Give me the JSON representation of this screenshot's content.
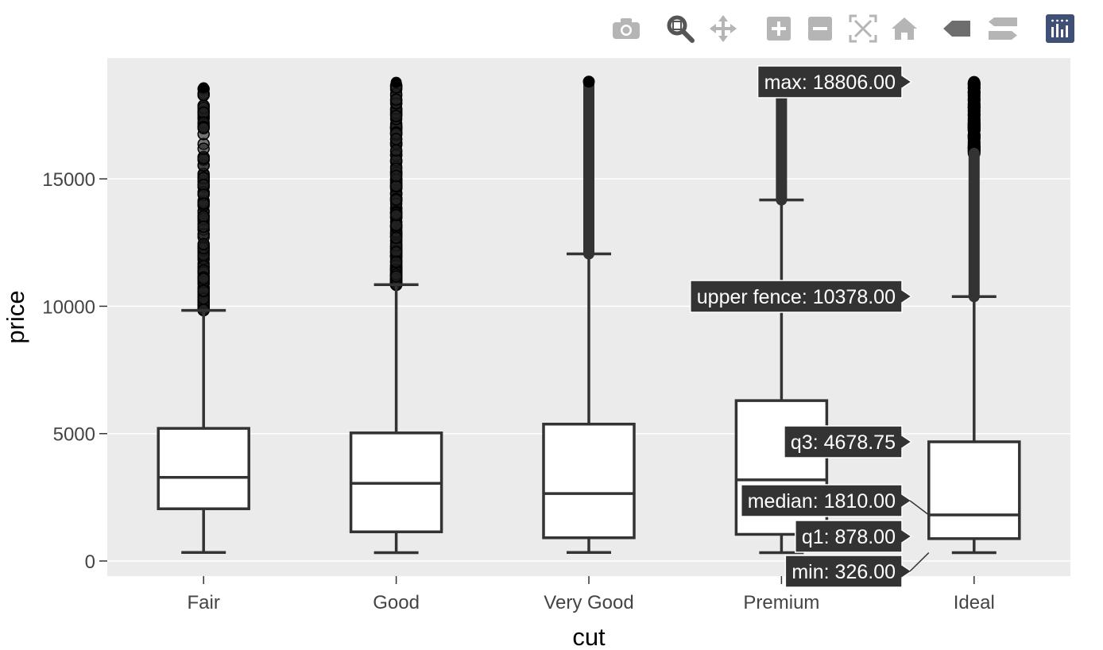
{
  "modebar": {
    "buttons": [
      {
        "icon": "camera-icon",
        "label": "Download plot as a png"
      },
      {
        "icon": "zoom-icon",
        "label": "Zoom"
      },
      {
        "icon": "pan-icon",
        "label": "Pan"
      },
      {
        "icon": "zoom-in-icon",
        "label": "Zoom in"
      },
      {
        "icon": "zoom-out-icon",
        "label": "Zoom out"
      },
      {
        "icon": "autoscale-icon",
        "label": "Autoscale"
      },
      {
        "icon": "home-icon",
        "label": "Reset axes"
      },
      {
        "icon": "spike-lines-icon",
        "label": "Show closest data on hover"
      },
      {
        "icon": "compare-icon",
        "label": "Compare data on hover"
      },
      {
        "icon": "plotly-logo-icon",
        "label": "Produced with Plotly"
      }
    ]
  },
  "colors": {
    "panel": "#ebebeb",
    "grid": "#ffffff",
    "box_line": "#333333",
    "box_fill": "#ffffff",
    "tooltip_bg": "#333333",
    "tooltip_text": "#ffffff",
    "modebar_icon": "#b5b5b5",
    "modebar_active": "#555555",
    "plotly_logo_bg": "#3f4f75"
  },
  "chart_data": {
    "type": "box",
    "xlabel": "cut",
    "ylabel": "price",
    "ylim": [
      -600,
      19200
    ],
    "yticks": [
      0,
      5000,
      10000,
      15000
    ],
    "grid": true,
    "categories": [
      "Fair",
      "Good",
      "Very Good",
      "Premium",
      "Ideal"
    ],
    "boxes": [
      {
        "category": "Fair",
        "min": 337,
        "q1": 2050,
        "median": 3282,
        "q3": 5206,
        "upper_fence": 9836,
        "max": 18574
      },
      {
        "category": "Good",
        "min": 327,
        "q1": 1145,
        "median": 3050,
        "q3": 5028,
        "upper_fence": 10845,
        "max": 18788
      },
      {
        "category": "Very Good",
        "min": 336,
        "q1": 912,
        "median": 2648,
        "q3": 5373,
        "upper_fence": 12054,
        "max": 18818
      },
      {
        "category": "Premium",
        "min": 326,
        "q1": 1046,
        "median": 3185,
        "q3": 6296,
        "upper_fence": 14173,
        "max": 18823
      },
      {
        "category": "Ideal",
        "min": 326,
        "q1": 878,
        "median": 1810,
        "q3": 4678.75,
        "upper_fence": 10378,
        "max": 18806
      }
    ],
    "hover": {
      "category": "Ideal",
      "labels": [
        {
          "key": "max",
          "text": "max: 18806.00",
          "value": 18806
        },
        {
          "key": "upper_fence",
          "text": "upper fence: 10378.00",
          "value": 10378
        },
        {
          "key": "q3",
          "text": "q3: 4678.75",
          "value": 4678.75
        },
        {
          "key": "median",
          "text": "median: 1810.00",
          "value": 1810
        },
        {
          "key": "q1",
          "text": "q1: 878.00",
          "value": 878
        },
        {
          "key": "min",
          "text": "min: 326.00",
          "value": 326
        }
      ]
    }
  }
}
